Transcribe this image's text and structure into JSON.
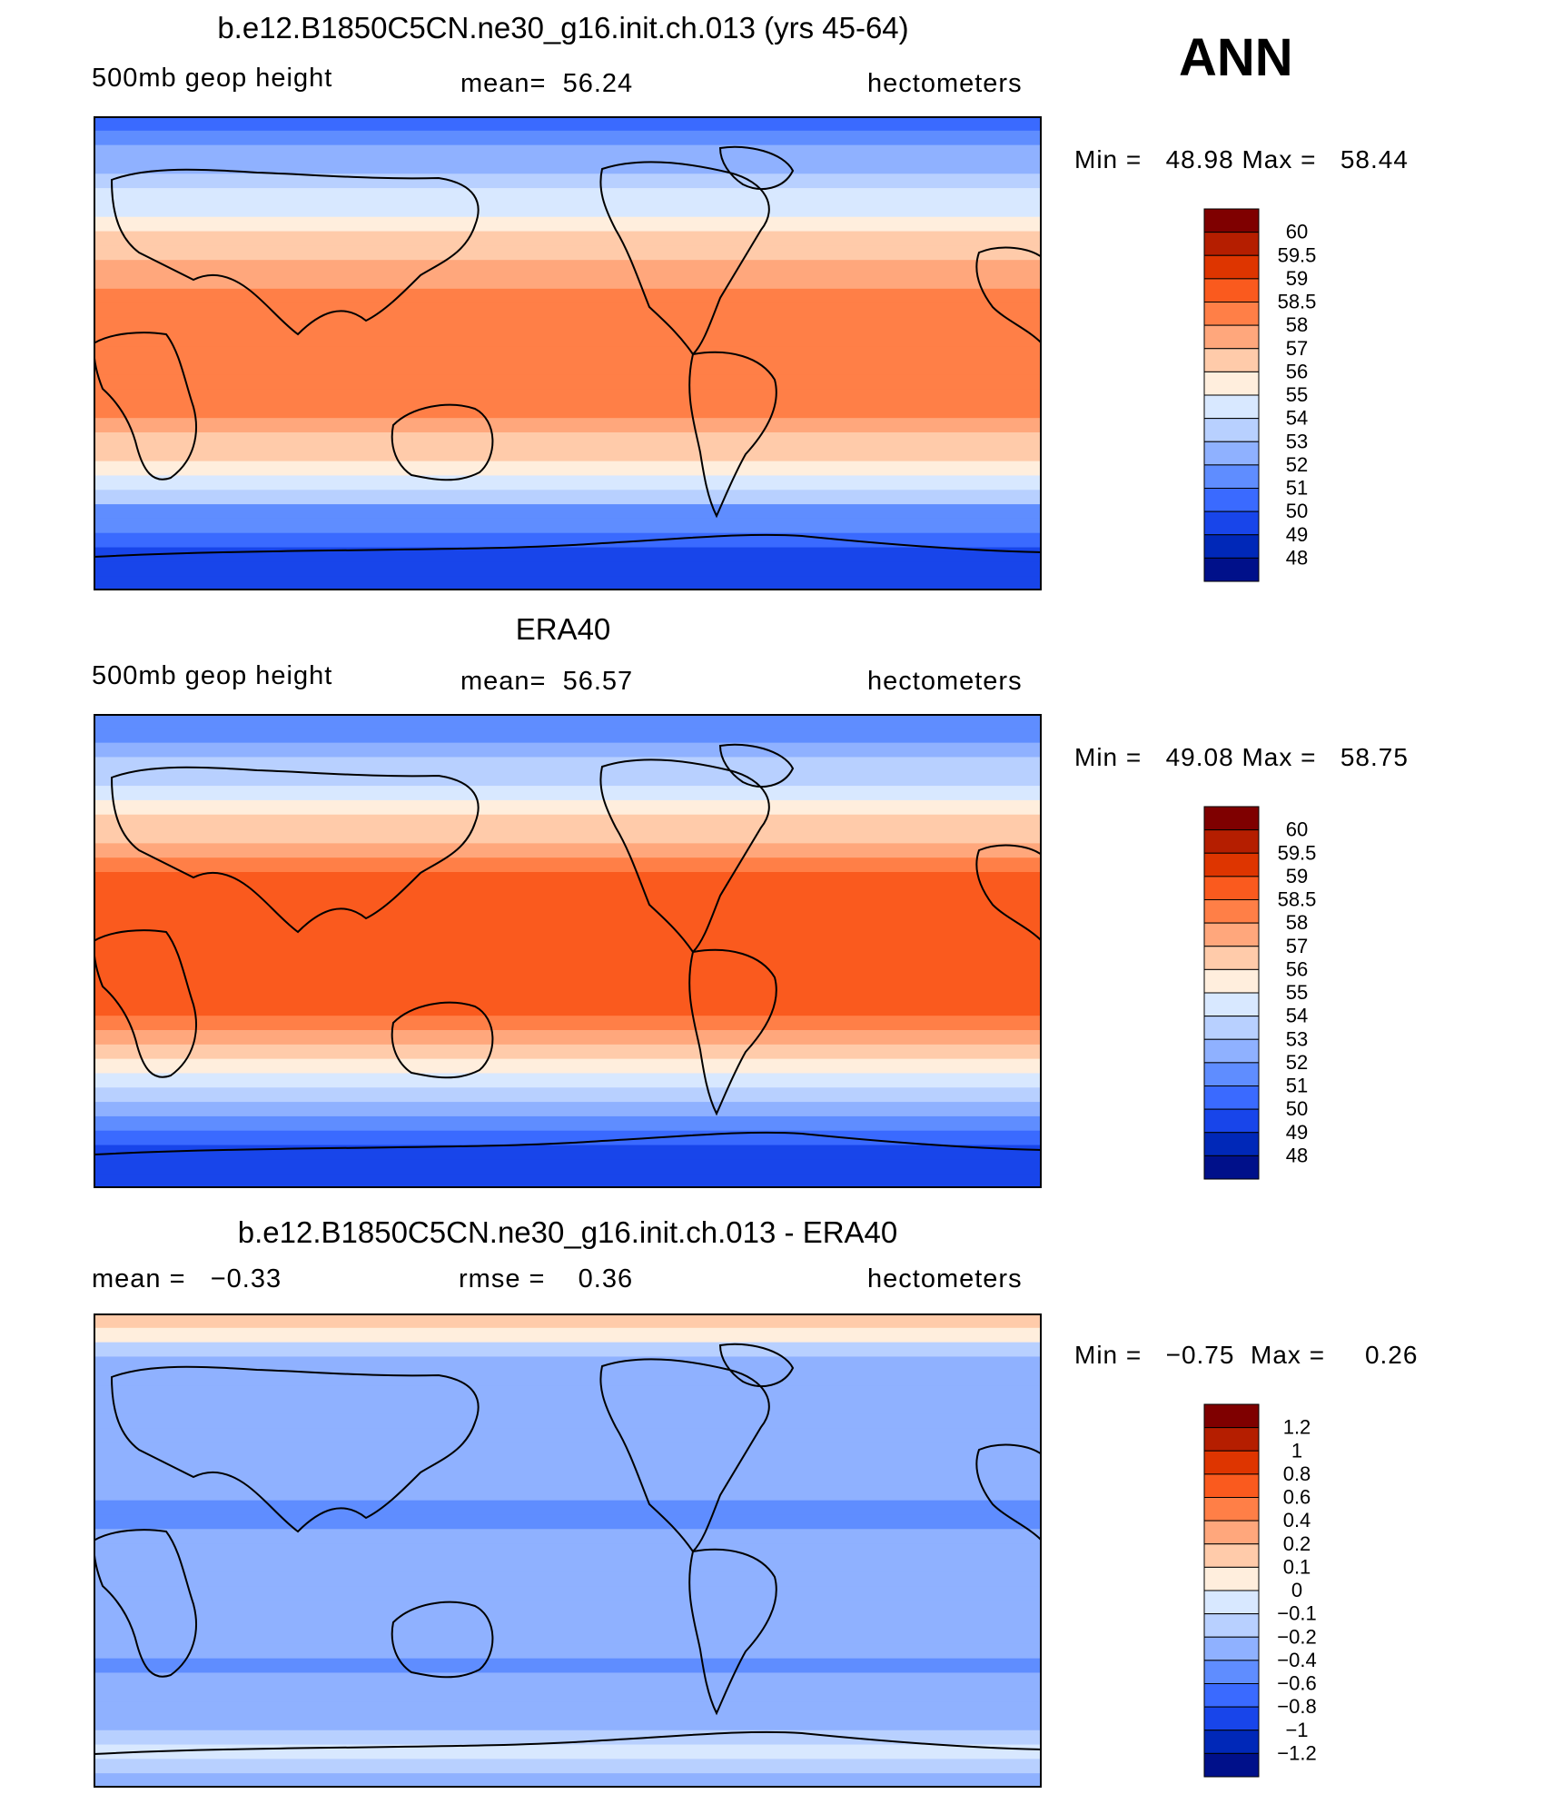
{
  "season": "ANN",
  "chart_data": [
    {
      "type": "heatmap",
      "title": "b.e12.B1850C5CN.ne30_g16.init.ch.013 (yrs 45-64)",
      "variable": "500mb geop height",
      "mean_label": "mean=",
      "mean": "56.24",
      "units": "hectometers",
      "min_label": "Min =",
      "min": "48.98",
      "max_label": "Max =",
      "max": "58.44",
      "levels": [
        "60",
        "59.5",
        "59",
        "58.5",
        "58",
        "57",
        "56",
        "55",
        "54",
        "53",
        "52",
        "51",
        "50",
        "49",
        "48"
      ],
      "colors": [
        "#7f0000",
        "#b51e00",
        "#de3500",
        "#fa5a1e",
        "#ff7f47",
        "#ffa77c",
        "#ffcbaa",
        "#ffeedd",
        "#d8e8ff",
        "#b8d0ff",
        "#8fb1ff",
        "#5f8dff",
        "#3a6aff",
        "#1845ea",
        "#0028b8",
        "#00108a"
      ],
      "latitude_profile": [
        50.4,
        51.2,
        52.0,
        52.8,
        53.4,
        54.1,
        54.8,
        55.5,
        56.0,
        56.7,
        57.3,
        57.8,
        58.2,
        58.3,
        58.4,
        58.4,
        58.4,
        58.4,
        58.4,
        58.3,
        58.1,
        57.6,
        56.9,
        56.0,
        55.1,
        54.2,
        53.0,
        51.9,
        51.0,
        50.1,
        49.4,
        49.0,
        49.0
      ]
    },
    {
      "type": "heatmap",
      "title": "ERA40",
      "variable": "500mb geop height",
      "mean_label": "mean=",
      "mean": "56.57",
      "units": "hectometers",
      "min_label": "Min =",
      "min": "49.08",
      "max_label": "Max =",
      "max": "58.75",
      "levels": [
        "60",
        "59.5",
        "59",
        "58.5",
        "58",
        "57",
        "56",
        "55",
        "54",
        "53",
        "52",
        "51",
        "50",
        "49",
        "48"
      ],
      "colors": [
        "#7f0000",
        "#b51e00",
        "#de3500",
        "#fa5a1e",
        "#ff7f47",
        "#ffa77c",
        "#ffcbaa",
        "#ffeedd",
        "#d8e8ff",
        "#b8d0ff",
        "#8fb1ff",
        "#5f8dff",
        "#3a6aff",
        "#1845ea",
        "#0028b8",
        "#00108a"
      ],
      "latitude_profile": [
        51.0,
        51.7,
        52.5,
        53.3,
        53.9,
        54.6,
        55.3,
        56.0,
        56.6,
        57.4,
        58.0,
        58.5,
        58.6,
        58.7,
        58.7,
        58.7,
        58.7,
        58.7,
        58.7,
        58.6,
        58.5,
        58.0,
        57.2,
        56.2,
        55.2,
        54.3,
        53.1,
        52.0,
        51.1,
        50.3,
        49.6,
        49.2,
        49.1
      ]
    },
    {
      "type": "heatmap",
      "title": "b.e12.B1850C5CN.ne30_g16.init.ch.013 - ERA40",
      "mean_label": "mean =",
      "mean": "−0.33",
      "rmse_label": "rmse =",
      "rmse": "0.36",
      "units": "hectometers",
      "min_label": "Min =",
      "min": "−0.75",
      "max_label": "Max =",
      "max": "0.26",
      "levels": [
        "1.2",
        "1",
        "0.8",
        "0.6",
        "0.4",
        "0.2",
        "0.1",
        "0",
        "−0.1",
        "−0.2",
        "−0.4",
        "−0.6",
        "−0.8",
        "−1",
        "−1.2"
      ],
      "colors": [
        "#7f0000",
        "#b51e00",
        "#de3500",
        "#fa5a1e",
        "#ff7f47",
        "#ffa77c",
        "#ffcbaa",
        "#ffeedd",
        "#d8e8ff",
        "#b8d0ff",
        "#8fb1ff",
        "#5f8dff",
        "#3a6aff",
        "#1845ea",
        "#0028b8",
        "#00108a"
      ],
      "latitude_profile": [
        0.15,
        0.05,
        -0.15,
        -0.3,
        -0.3,
        -0.25,
        -0.3,
        -0.3,
        -0.35,
        -0.3,
        -0.3,
        -0.3,
        -0.35,
        -0.45,
        -0.45,
        -0.4,
        -0.3,
        -0.3,
        -0.35,
        -0.3,
        -0.3,
        -0.35,
        -0.3,
        -0.35,
        -0.45,
        -0.35,
        -0.3,
        -0.35,
        -0.3,
        -0.2,
        -0.05,
        -0.15,
        -0.25
      ]
    }
  ]
}
